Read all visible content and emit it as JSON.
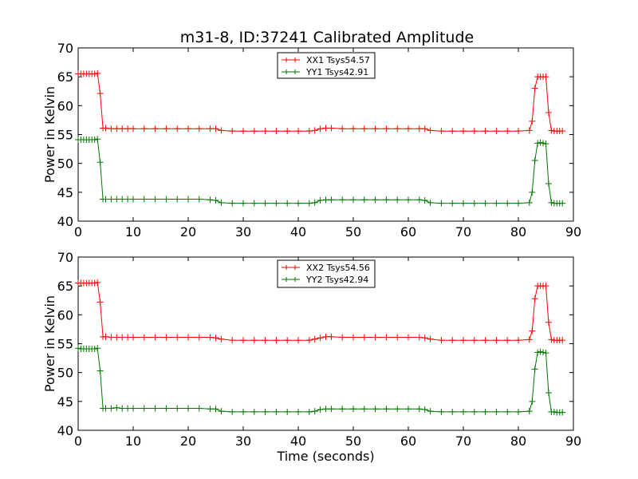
{
  "chart_data": [
    {
      "type": "line",
      "title": "m31-8, ID:37241 Calibrated Amplitude",
      "xlabel": "",
      "ylabel": "Power in Kelvin",
      "xlim": [
        0,
        90
      ],
      "ylim": [
        40,
        70
      ],
      "xticks": [
        "0",
        "10",
        "20",
        "30",
        "40",
        "50",
        "60",
        "70",
        "80",
        "90"
      ],
      "yticks": [
        "40",
        "45",
        "50",
        "55",
        "60",
        "65",
        "70"
      ],
      "legend_position": "top-center",
      "grid": false,
      "series": [
        {
          "name": "XX1 Tsys54.57",
          "color": "#ff0000",
          "x": [
            0,
            0.5,
            1,
            1.5,
            2,
            2.5,
            3,
            3.5,
            4,
            4.5,
            5,
            6,
            7,
            8,
            9,
            10,
            12,
            14,
            16,
            18,
            20,
            22,
            24,
            25,
            26,
            28,
            30,
            32,
            34,
            36,
            38,
            40,
            42,
            43,
            44,
            45,
            46,
            48,
            50,
            52,
            54,
            56,
            58,
            60,
            62,
            63,
            64,
            66,
            68,
            70,
            72,
            74,
            76,
            78,
            80,
            82,
            82.5,
            83,
            83.5,
            84,
            84.5,
            85,
            85.5,
            86,
            86.5,
            87,
            87.5,
            88
          ],
          "y": [
            65.5,
            65.5,
            65.5,
            65.5,
            65.5,
            65.5,
            65.5,
            65.6,
            62.1,
            56.1,
            56.1,
            56.0,
            56.0,
            56.0,
            56.0,
            56.0,
            56.0,
            56.0,
            56.0,
            56.0,
            56.0,
            56.0,
            56.0,
            56.0,
            55.7,
            55.6,
            55.6,
            55.6,
            55.6,
            55.6,
            55.6,
            55.6,
            55.6,
            55.7,
            56.0,
            56.1,
            56.1,
            56.0,
            56.0,
            56.0,
            56.0,
            56.0,
            56.0,
            56.0,
            56.0,
            56.0,
            55.7,
            55.6,
            55.6,
            55.6,
            55.6,
            55.6,
            55.6,
            55.6,
            55.6,
            55.7,
            57.3,
            63.0,
            65.0,
            65.0,
            65.0,
            65.0,
            58.8,
            55.7,
            55.6,
            55.6,
            55.6,
            55.6
          ]
        },
        {
          "name": "YY1 Tsys42.91",
          "color": "#007700",
          "x": [
            0,
            0.5,
            1,
            1.5,
            2,
            2.5,
            3,
            3.5,
            4,
            4.5,
            5,
            6,
            7,
            8,
            9,
            10,
            12,
            14,
            16,
            18,
            20,
            22,
            24,
            25,
            26,
            28,
            30,
            32,
            34,
            36,
            38,
            40,
            42,
            43,
            44,
            45,
            46,
            48,
            50,
            52,
            54,
            56,
            58,
            60,
            62,
            63,
            64,
            66,
            68,
            70,
            72,
            74,
            76,
            78,
            80,
            82,
            82.5,
            83,
            83.5,
            84,
            84.5,
            85,
            85.5,
            86,
            86.5,
            87,
            87.5,
            88
          ],
          "y": [
            54.1,
            54.1,
            54.1,
            54.1,
            54.1,
            54.1,
            54.1,
            54.2,
            50.2,
            43.8,
            43.8,
            43.8,
            43.8,
            43.8,
            43.8,
            43.8,
            43.8,
            43.8,
            43.8,
            43.8,
            43.8,
            43.8,
            43.7,
            43.6,
            43.2,
            43.1,
            43.1,
            43.1,
            43.1,
            43.1,
            43.1,
            43.1,
            43.1,
            43.2,
            43.6,
            43.7,
            43.7,
            43.7,
            43.7,
            43.7,
            43.7,
            43.7,
            43.7,
            43.7,
            43.7,
            43.6,
            43.2,
            43.1,
            43.1,
            43.1,
            43.1,
            43.1,
            43.1,
            43.1,
            43.1,
            43.2,
            45.0,
            50.5,
            53.5,
            53.6,
            53.5,
            53.4,
            46.5,
            43.2,
            43.1,
            43.1,
            43.1,
            43.1
          ]
        }
      ]
    },
    {
      "type": "line",
      "title": "",
      "xlabel": "Time (seconds)",
      "ylabel": "Power in Kelvin",
      "xlim": [
        0,
        90
      ],
      "ylim": [
        40,
        70
      ],
      "xticks": [
        "0",
        "10",
        "20",
        "30",
        "40",
        "50",
        "60",
        "70",
        "80",
        "90"
      ],
      "yticks": [
        "40",
        "45",
        "50",
        "55",
        "60",
        "65",
        "70"
      ],
      "legend_position": "top-center",
      "grid": false,
      "series": [
        {
          "name": "XX2 Tsys54.56",
          "color": "#ff0000",
          "x": [
            0,
            0.5,
            1,
            1.5,
            2,
            2.5,
            3,
            3.5,
            4,
            4.5,
            5,
            6,
            7,
            8,
            9,
            10,
            12,
            14,
            16,
            18,
            20,
            22,
            24,
            25,
            26,
            28,
            30,
            32,
            34,
            36,
            38,
            40,
            42,
            43,
            44,
            45,
            46,
            48,
            50,
            52,
            54,
            56,
            58,
            60,
            62,
            63,
            64,
            66,
            68,
            70,
            72,
            74,
            76,
            78,
            80,
            82,
            82.5,
            83,
            83.5,
            84,
            84.5,
            85,
            85.5,
            86,
            86.5,
            87,
            87.5,
            88
          ],
          "y": [
            65.5,
            65.5,
            65.5,
            65.5,
            65.5,
            65.5,
            65.5,
            65.6,
            62.2,
            56.2,
            56.2,
            56.1,
            56.1,
            56.1,
            56.1,
            56.1,
            56.1,
            56.1,
            56.1,
            56.1,
            56.1,
            56.1,
            56.1,
            56.0,
            55.8,
            55.6,
            55.6,
            55.6,
            55.6,
            55.6,
            55.6,
            55.6,
            55.6,
            55.8,
            56.0,
            56.2,
            56.2,
            56.1,
            56.1,
            56.1,
            56.1,
            56.1,
            56.1,
            56.1,
            56.1,
            56.0,
            55.8,
            55.6,
            55.6,
            55.6,
            55.6,
            55.6,
            55.6,
            55.6,
            55.6,
            55.7,
            57.2,
            62.8,
            65.0,
            65.0,
            65.0,
            65.0,
            58.7,
            55.7,
            55.6,
            55.6,
            55.6,
            55.6
          ]
        },
        {
          "name": "YY2 Tsys42.94",
          "color": "#007700",
          "x": [
            0,
            0.5,
            1,
            1.5,
            2,
            2.5,
            3,
            3.5,
            4,
            4.5,
            5,
            6,
            7,
            8,
            9,
            10,
            12,
            14,
            16,
            18,
            20,
            22,
            24,
            25,
            26,
            28,
            30,
            32,
            34,
            36,
            38,
            40,
            42,
            43,
            44,
            45,
            46,
            48,
            50,
            52,
            54,
            56,
            58,
            60,
            62,
            63,
            64,
            66,
            68,
            70,
            72,
            74,
            76,
            78,
            80,
            82,
            82.5,
            83,
            83.5,
            84,
            84.5,
            85,
            85.5,
            86,
            86.5,
            87,
            87.5,
            88
          ],
          "y": [
            54.2,
            54.1,
            54.1,
            54.1,
            54.1,
            54.1,
            54.1,
            54.2,
            50.3,
            43.8,
            43.8,
            43.8,
            43.9,
            43.8,
            43.8,
            43.8,
            43.8,
            43.8,
            43.8,
            43.8,
            43.8,
            43.8,
            43.7,
            43.7,
            43.3,
            43.2,
            43.2,
            43.2,
            43.2,
            43.2,
            43.2,
            43.2,
            43.2,
            43.3,
            43.6,
            43.7,
            43.7,
            43.7,
            43.7,
            43.7,
            43.7,
            43.7,
            43.7,
            43.7,
            43.7,
            43.6,
            43.3,
            43.2,
            43.2,
            43.2,
            43.2,
            43.2,
            43.2,
            43.2,
            43.2,
            43.3,
            45.0,
            50.6,
            53.5,
            53.6,
            53.5,
            53.4,
            46.5,
            43.2,
            43.2,
            43.1,
            43.1,
            43.1
          ]
        }
      ]
    }
  ]
}
